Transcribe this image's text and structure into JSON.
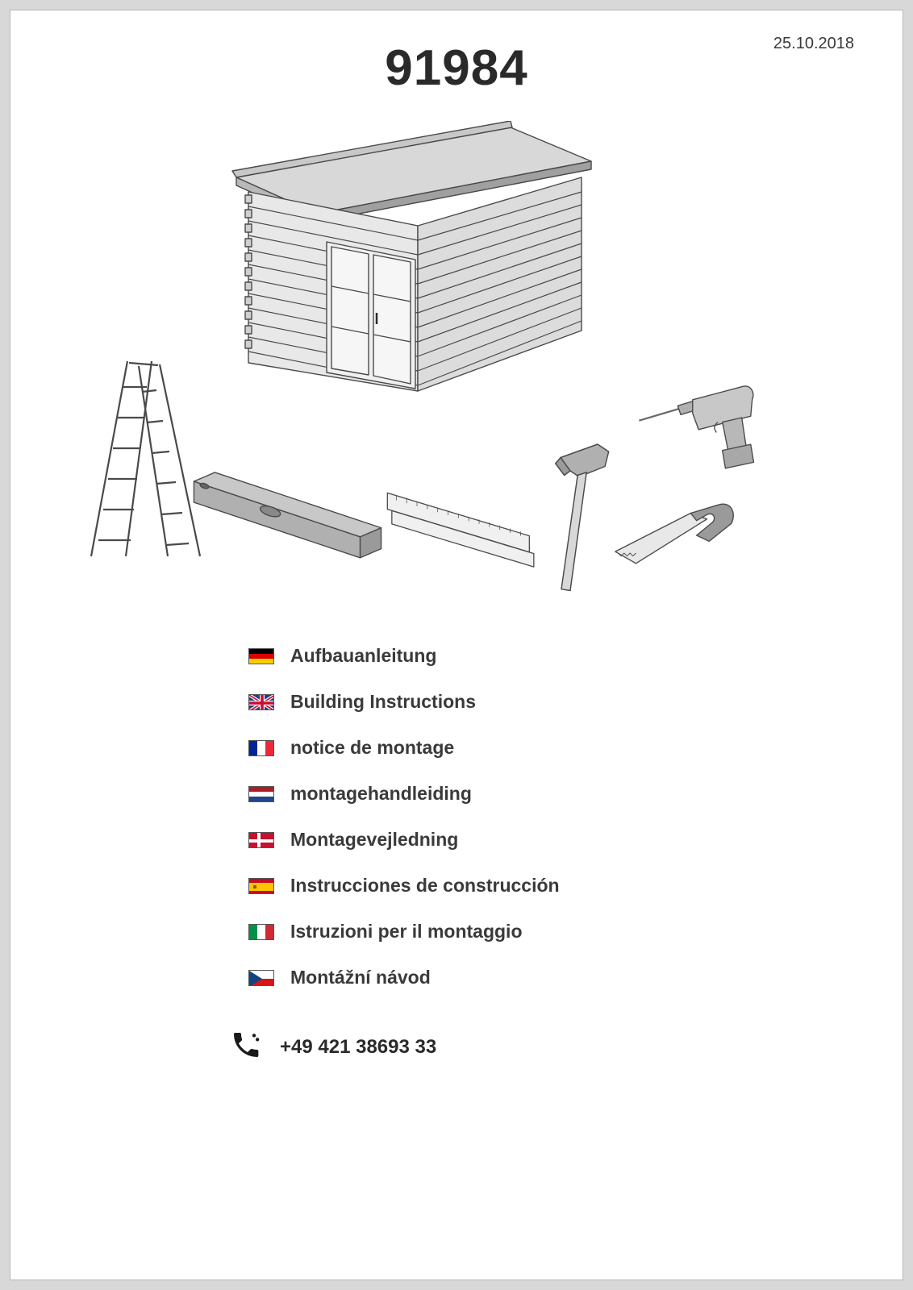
{
  "date": "25.10.2018",
  "product_number": "91984",
  "phone": "+49 421 38693 33",
  "languages": [
    {
      "flag": "de",
      "label": "Aufbauanleitung"
    },
    {
      "flag": "uk",
      "label": "Building Instructions"
    },
    {
      "flag": "fr",
      "label": "notice de montage"
    },
    {
      "flag": "nl",
      "label": "montagehandleiding"
    },
    {
      "flag": "dk",
      "label": "Montagevejledning"
    },
    {
      "flag": "es",
      "label": "Instrucciones de construcción"
    },
    {
      "flag": "it",
      "label": "Istruzioni per il montaggio"
    },
    {
      "flag": "cz",
      "label": "Montážní návod"
    }
  ],
  "illustration": {
    "stroke": "#4a4a4a",
    "fill_light": "#e8e8e8",
    "fill_mid": "#c8c8c8",
    "fill_dark": "#9a9a9a",
    "fill_roof": "#d8d8d8",
    "stroke_width": 1.4
  }
}
